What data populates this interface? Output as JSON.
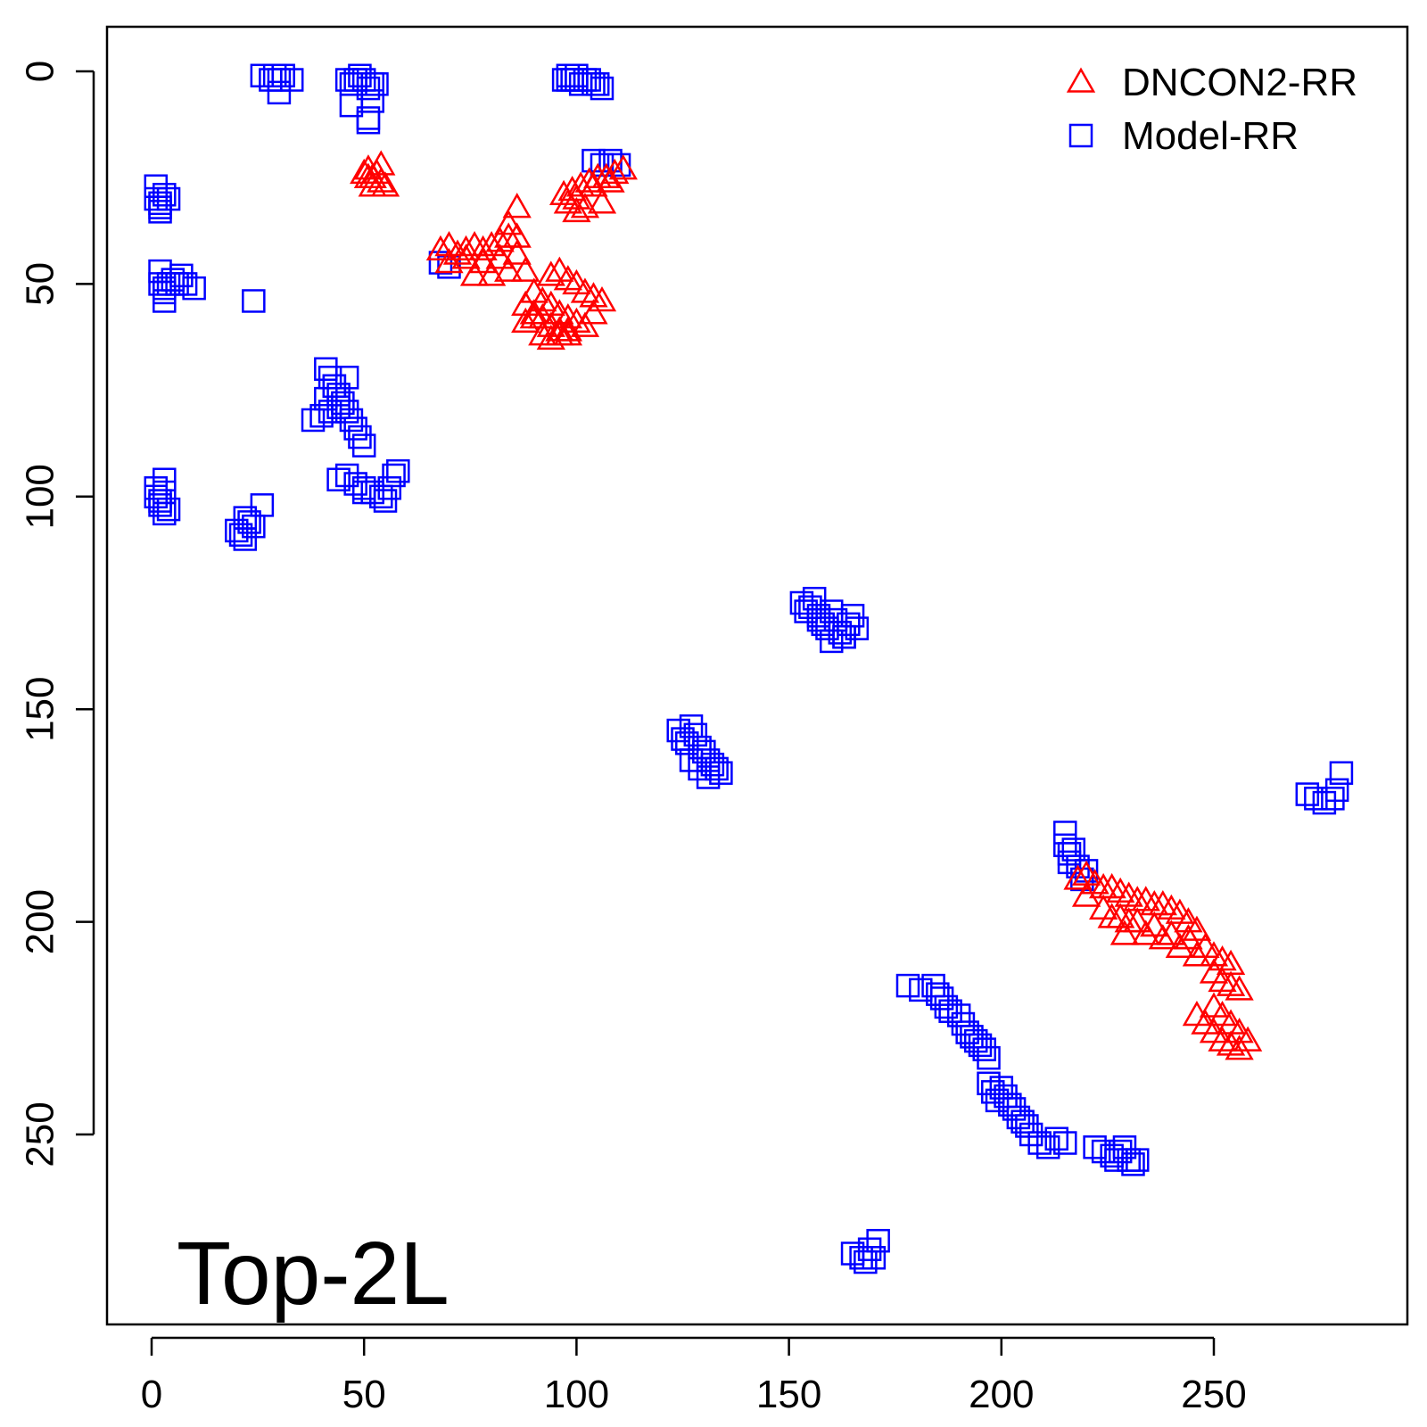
{
  "chart_data": {
    "type": "scatter",
    "title": "",
    "xlabel": "",
    "ylabel": "",
    "xlim": [
      -10,
      297
    ],
    "ylim": [
      295,
      -10
    ],
    "y_axis_inverted": true,
    "x_ticks": [
      "0",
      "50",
      "100",
      "150",
      "200",
      "250"
    ],
    "y_ticks": [
      "0",
      "50",
      "100",
      "150",
      "200",
      "250"
    ],
    "x_tick_values": [
      0,
      50,
      100,
      150,
      200,
      250
    ],
    "y_tick_values": [
      0,
      50,
      100,
      150,
      200,
      250
    ],
    "grid": false,
    "legend_position": "top-right",
    "annotation": "Top-2L",
    "series": [
      {
        "name": "DNCON2-RR",
        "marker": "triangle",
        "color": "#ff0000",
        "x": [
          50,
          51,
          52,
          53,
          54,
          54,
          55,
          52,
          51,
          68,
          70,
          72,
          74,
          76,
          78,
          80,
          82,
          84,
          86,
          70,
          74,
          78,
          82,
          86,
          76,
          80,
          84,
          88,
          84,
          86,
          88,
          90,
          92,
          94,
          96,
          98,
          90,
          92,
          94,
          96,
          98,
          100,
          102,
          104,
          106,
          94,
          96,
          98,
          100,
          102,
          104,
          92,
          94,
          96,
          98,
          88,
          90,
          97,
          99,
          101,
          103,
          105,
          107,
          109,
          111,
          98,
          100,
          104,
          108,
          100,
          102,
          106,
          218,
          220,
          222,
          224,
          226,
          228,
          230,
          232,
          234,
          236,
          238,
          240,
          242,
          244,
          246,
          220,
          224,
          228,
          232,
          236,
          240,
          244,
          248,
          250,
          252,
          254,
          226,
          230,
          234,
          238,
          242,
          246,
          250,
          252,
          254,
          256,
          250,
          252,
          254,
          256,
          258,
          246,
          248,
          250,
          252,
          254,
          256,
          229,
          244,
          240,
          236
        ],
        "y": [
          24,
          23,
          25,
          24,
          22,
          26,
          27,
          27,
          25,
          42,
          41,
          43,
          42,
          41,
          42,
          41,
          40,
          39,
          39,
          45,
          44,
          45,
          44,
          43,
          48,
          48,
          47,
          47,
          36,
          32,
          55,
          57,
          58,
          60,
          61,
          62,
          52,
          54,
          55,
          57,
          58,
          59,
          60,
          57,
          54,
          48,
          47,
          49,
          50,
          52,
          53,
          62,
          63,
          62,
          61,
          59,
          58,
          29,
          28,
          27,
          26,
          25,
          25,
          24,
          23,
          31,
          30,
          27,
          26,
          33,
          32,
          31,
          190,
          189,
          191,
          192,
          192,
          193,
          194,
          195,
          195,
          196,
          196,
          197,
          198,
          200,
          202,
          194,
          197,
          199,
          200,
          201,
          203,
          204,
          206,
          208,
          209,
          210,
          199,
          200,
          203,
          204,
          206,
          208,
          212,
          214,
          215,
          216,
          220,
          222,
          224,
          226,
          228,
          222,
          224,
          226,
          228,
          229,
          230,
          203,
          204,
          203,
          201
        ]
      },
      {
        "name": "Model-RR",
        "marker": "square",
        "color": "#0000ff",
        "x": [
          26,
          28,
          29,
          30,
          31,
          33,
          30,
          46,
          47,
          48,
          49,
          50,
          51,
          52,
          53,
          47,
          51,
          51,
          52,
          97,
          98,
          99,
          100,
          101,
          102,
          103,
          104,
          105,
          106,
          98,
          100,
          1,
          1,
          2,
          2,
          3,
          4,
          2,
          2,
          2,
          3,
          3,
          4,
          5,
          6,
          7,
          8,
          10,
          3,
          24,
          41,
          42,
          43,
          44,
          45,
          46,
          47,
          48,
          49,
          50,
          38,
          40,
          42,
          44,
          46,
          41,
          43,
          44,
          46,
          48,
          50,
          52,
          54,
          55,
          56,
          57,
          58,
          50,
          1,
          1,
          2,
          2,
          3,
          3,
          4,
          3,
          20,
          21,
          22,
          23,
          24,
          26,
          22,
          153,
          154,
          155,
          156,
          157,
          158,
          159,
          160,
          161,
          162,
          163,
          164,
          165,
          166,
          157,
          160,
          163,
          124,
          125,
          126,
          127,
          128,
          129,
          130,
          131,
          132,
          133,
          134,
          127,
          129,
          131,
          215,
          215,
          216,
          216,
          217,
          218,
          219,
          220,
          178,
          181,
          184,
          185,
          186,
          187,
          188,
          190,
          191,
          192,
          193,
          194,
          195,
          196,
          197,
          197,
          198,
          199,
          200,
          201,
          202,
          203,
          204,
          205,
          206,
          207,
          209,
          211,
          213,
          215,
          222,
          224,
          226,
          227,
          228,
          229,
          230,
          231,
          232,
          165,
          167,
          168,
          169,
          170,
          171,
          272,
          274,
          276,
          278,
          279,
          280,
          68,
          70,
          104,
          106,
          108,
          110
        ],
        "y": [
          1,
          2,
          1,
          2,
          1,
          2,
          5,
          2,
          3,
          2,
          1,
          2,
          4,
          7,
          3,
          8,
          11,
          12,
          3,
          2,
          1,
          2,
          1,
          3,
          2,
          2,
          3,
          3,
          4,
          2,
          2,
          27,
          30,
          31,
          33,
          29,
          30,
          32,
          47,
          50,
          51,
          54,
          50,
          49,
          50,
          48,
          50,
          51,
          52,
          54,
          70,
          72,
          74,
          76,
          78,
          80,
          82,
          84,
          86,
          88,
          82,
          81,
          80,
          79,
          72,
          77,
          74,
          96,
          95,
          97,
          98,
          99,
          100,
          101,
          98,
          95,
          94,
          99,
          98,
          100,
          101,
          102,
          99,
          96,
          103,
          104,
          108,
          109,
          105,
          106,
          107,
          102,
          110,
          125,
          127,
          126,
          124,
          128,
          130,
          131,
          127,
          129,
          132,
          133,
          130,
          128,
          131,
          129,
          134,
          133,
          155,
          157,
          158,
          154,
          156,
          159,
          160,
          162,
          163,
          164,
          165,
          162,
          164,
          166,
          179,
          182,
          184,
          186,
          183,
          187,
          190,
          188,
          215,
          216,
          215,
          217,
          218,
          220,
          221,
          222,
          224,
          226,
          227,
          228,
          229,
          230,
          232,
          238,
          240,
          242,
          239,
          241,
          243,
          244,
          246,
          247,
          248,
          250,
          252,
          253,
          251,
          252,
          253,
          254,
          255,
          256,
          254,
          253,
          256,
          257,
          256,
          278,
          279,
          280,
          277,
          279,
          275,
          170,
          171,
          172,
          171,
          169,
          165,
          45,
          46,
          21,
          22,
          21,
          22
        ]
      }
    ]
  }
}
